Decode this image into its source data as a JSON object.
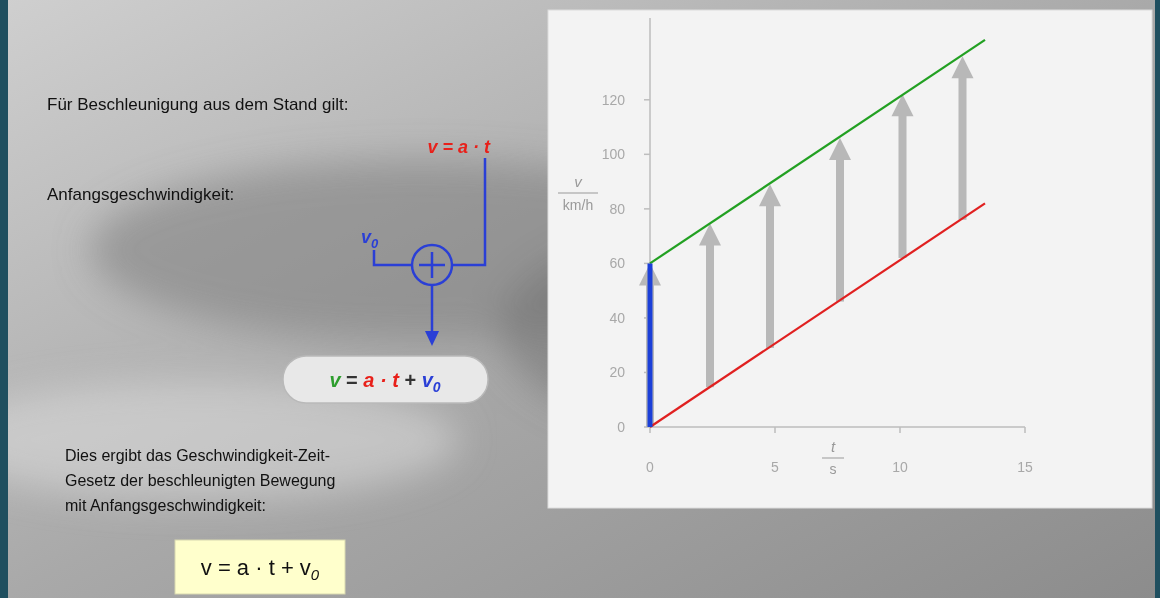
{
  "slide": {
    "line1": "Für Beschleunigung aus dem Stand gilt:",
    "line2": "Anfangsgeschwindigkeit:",
    "conclusion": [
      "Dies ergibt das Geschwindigkeit-Zeit-",
      "Gesetz der beschleunigten Bewegung",
      "mit Anfangsgeschwindigkeit:"
    ],
    "formula_rest": {
      "text": "v = a · t",
      "color": "#e8201a"
    },
    "v0_label": {
      "text": "v",
      "sub": "0",
      "color": "#2a3fd6"
    },
    "result_formula": {
      "parts": [
        {
          "text": "v",
          "color": "#2e9e2e"
        },
        {
          "text": " = ",
          "color": "#333333"
        },
        {
          "text": "a · t",
          "color": "#e8201a"
        },
        {
          "text": " + ",
          "color": "#333333"
        },
        {
          "text": "v",
          "sub": "0",
          "color": "#2a3fd6"
        }
      ]
    },
    "law": {
      "text": "v = a · t + v",
      "sub": "0"
    }
  },
  "chart_data": {
    "type": "line",
    "xlabel": "t",
    "xunit": "s",
    "ylabel": "v",
    "yunit": "km/h",
    "xlim": [
      0,
      15
    ],
    "xticks": [
      0,
      5,
      10,
      15
    ],
    "ylim": [
      0,
      150
    ],
    "yticks": [
      0,
      20,
      40,
      60,
      80,
      100,
      120
    ],
    "x": [
      0,
      13.4
    ],
    "series": [
      {
        "color": "#e02020",
        "values": [
          0,
          82
        ]
      },
      {
        "color": "#22a022",
        "values": [
          60,
          142
        ]
      }
    ],
    "start_value": {
      "value": 60,
      "color": "#1b3fd8"
    },
    "shift_arrows": {
      "x": [
        0,
        2.4,
        4.8,
        7.6,
        10.1,
        12.5
      ],
      "from": [
        0,
        14.6,
        29,
        46,
        62,
        76
      ],
      "to": [
        60,
        74.6,
        89,
        106,
        122,
        136
      ],
      "color": "#b8b8b8"
    }
  }
}
